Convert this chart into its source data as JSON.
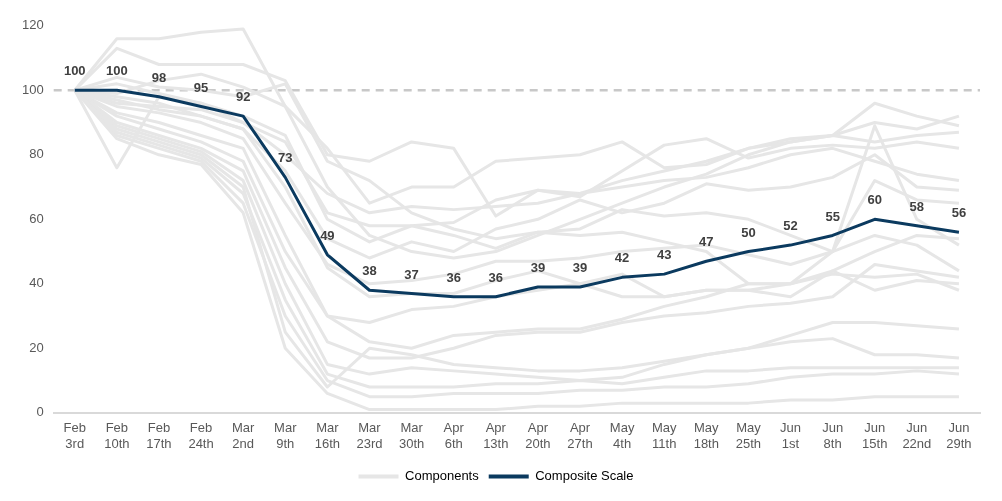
{
  "chart_data": {
    "type": "line",
    "categories": [
      "Feb 3rd",
      "Feb 10th",
      "Feb 17th",
      "Feb 24th",
      "Mar 2nd",
      "Mar 9th",
      "Mar 16th",
      "Mar 23rd",
      "Mar 30th",
      "Apr 6th",
      "Apr 13th",
      "Apr 20th",
      "Apr 27th",
      "May 4th",
      "May 11th",
      "May 18th",
      "May 25th",
      "Jun 1st",
      "Jun 8th",
      "Jun 15th",
      "Jun 22nd",
      "Jun 29th"
    ],
    "ylim": [
      0,
      120
    ],
    "yticks": [
      0,
      20,
      40,
      60,
      80,
      100,
      120
    ],
    "grid": false,
    "legend": "bottom",
    "marker": "none",
    "line_style": "solid",
    "ref_lines": [
      {
        "axis": "y",
        "value": 100,
        "color": "#c8c8c8",
        "line_style": "dashed"
      }
    ],
    "series": [
      {
        "name": "Components",
        "color": "#e6e6e6",
        "values": [
          100,
          116,
          116,
          118,
          119,
          95,
          70,
          55,
          50,
          48,
          50,
          55,
          60,
          65,
          70,
          74,
          80,
          84,
          86,
          90,
          88,
          92
        ]
      },
      {
        "color": "#e6e6e6",
        "values": [
          100,
          113,
          108,
          108,
          108,
          103,
          80,
          78,
          84,
          82,
          61,
          69,
          68,
          72,
          75,
          78,
          82,
          85,
          86,
          96,
          92,
          89
        ]
      },
      {
        "color": "#e6e6e6",
        "values": [
          100,
          99,
          103,
          105,
          101,
          95,
          82,
          65,
          70,
          70,
          78,
          79,
          80,
          84,
          76,
          77,
          82,
          84,
          86,
          84,
          86,
          87
        ]
      },
      {
        "color": "#e6e6e6",
        "values": [
          100,
          76,
          98,
          96,
          92,
          86,
          60,
          53,
          58,
          59,
          66,
          69,
          67,
          75,
          83,
          85,
          79,
          82,
          83,
          82,
          84,
          82
        ]
      },
      {
        "color": "#e6e6e6",
        "values": [
          100,
          96,
          95,
          94,
          90,
          80,
          68,
          62,
          64,
          63,
          64,
          65,
          68,
          70,
          72,
          73,
          76,
          80,
          82,
          78,
          74,
          72
        ]
      },
      {
        "color": "#e6e6e6",
        "values": [
          100,
          104,
          101,
          100,
          98,
          102,
          78,
          72,
          62,
          57,
          54,
          56,
          57,
          63,
          61,
          62,
          60,
          55,
          50,
          89,
          60,
          52
        ]
      },
      {
        "color": "#e6e6e6",
        "values": [
          100,
          98,
          96,
          92,
          88,
          75,
          54,
          48,
          53,
          50,
          57,
          60,
          66,
          62,
          65,
          71,
          69,
          70,
          73,
          80,
          70,
          69
        ]
      },
      {
        "color": "#e6e6e6",
        "values": [
          100,
          102,
          99,
          96,
          90,
          84,
          62,
          58,
          58,
          55,
          51,
          56,
          55,
          56,
          53,
          50,
          40,
          40,
          50,
          72,
          66,
          65
        ]
      },
      {
        "color": "#e6e6e6",
        "values": [
          100,
          95,
          93,
          90,
          85,
          65,
          46,
          40,
          41,
          43,
          47,
          47,
          48,
          50,
          51,
          52,
          49,
          46,
          50,
          55,
          52,
          44
        ]
      },
      {
        "color": "#e6e6e6",
        "values": [
          100,
          97,
          94,
          92,
          88,
          70,
          45,
          36,
          37,
          37,
          41,
          44,
          40,
          43,
          36,
          38,
          38,
          40,
          43,
          42,
          43,
          38
        ]
      },
      {
        "color": "#e6e6e6",
        "values": [
          100,
          93,
          90,
          86,
          82,
          55,
          30,
          28,
          32,
          33,
          36,
          38,
          40,
          36,
          36,
          38,
          38,
          36,
          44,
          38,
          41,
          40
        ]
      },
      {
        "color": "#e6e6e6",
        "values": [
          100,
          92,
          88,
          84,
          78,
          50,
          30,
          22,
          20,
          24,
          25,
          26,
          26,
          29,
          33,
          36,
          40,
          40,
          44,
          50,
          55,
          54
        ]
      },
      {
        "color": "#e6e6e6",
        "values": [
          100,
          90,
          86,
          82,
          75,
          45,
          22,
          17,
          17,
          20,
          24,
          25,
          25,
          28,
          30,
          31,
          33,
          34,
          36,
          46,
          44,
          42
        ]
      },
      {
        "color": "#e6e6e6",
        "values": [
          100,
          88,
          84,
          80,
          70,
          25,
          8,
          20,
          18,
          15,
          14,
          13,
          13,
          14,
          16,
          18,
          20,
          24,
          28,
          28,
          27,
          26
        ]
      },
      {
        "color": "#e6e6e6",
        "values": [
          100,
          89,
          85,
          81,
          72,
          40,
          15,
          12,
          14,
          13,
          12,
          11,
          10,
          11,
          15,
          18,
          20,
          22,
          23,
          18,
          18,
          17
        ]
      },
      {
        "color": "#e6e6e6",
        "values": [
          100,
          87,
          83,
          79,
          68,
          35,
          12,
          8,
          8,
          8,
          9,
          9,
          10,
          9,
          11,
          13,
          13,
          14,
          14,
          14,
          14,
          14
        ]
      },
      {
        "color": "#e6e6e6",
        "values": [
          100,
          86,
          82,
          78,
          65,
          30,
          10,
          5,
          5,
          6,
          6,
          6,
          7,
          7,
          8,
          8,
          9,
          11,
          12,
          12,
          13,
          12
        ]
      },
      {
        "color": "#e6e6e6",
        "values": [
          100,
          85,
          80,
          77,
          62,
          20,
          6,
          1,
          1,
          1,
          1,
          2,
          2,
          3,
          3,
          3,
          3,
          4,
          4,
          5,
          5,
          5
        ]
      },
      {
        "name": "Composite Scale",
        "color": "#0b3a5f",
        "values": [
          100,
          100,
          98,
          95,
          92,
          73,
          49,
          38,
          37,
          36,
          36,
          39,
          39,
          42,
          43,
          47,
          50,
          52,
          55,
          60,
          58,
          56
        ],
        "value_labels": [
          "100",
          "100",
          "98",
          "95",
          "92",
          "73",
          "49",
          "38",
          "37",
          "36",
          "36",
          "39",
          "39",
          "42",
          "43",
          "47",
          "50",
          "52",
          "55",
          "60",
          "58",
          "56"
        ]
      }
    ]
  }
}
